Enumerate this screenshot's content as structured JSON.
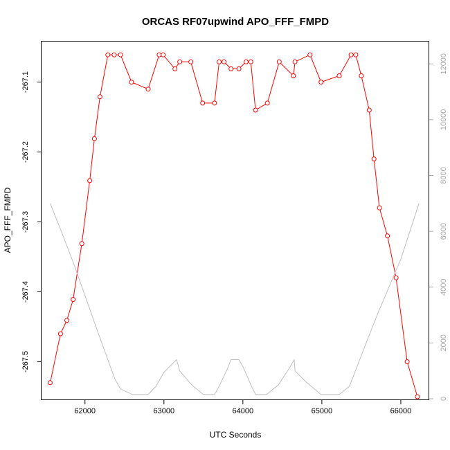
{
  "chart_data": {
    "type": "line",
    "title": "ORCAS RF07upwind APO_FFF_FMPD",
    "xlabel": "UTC Seconds",
    "ylabel": "APO_FFF_FMPD",
    "xlim": [
      61450,
      66360
    ],
    "ylim": [
      -267.555,
      -267.042
    ],
    "y2lim": [
      -50,
      12800
    ],
    "x_ticks": [
      62000,
      63000,
      64000,
      65000,
      66000
    ],
    "y_ticks": [
      -267.5,
      -267.4,
      -267.3,
      -267.2,
      -267.1
    ],
    "y2_ticks": [
      0,
      2000,
      4000,
      6000,
      8000,
      10000,
      12000
    ],
    "colors": {
      "primary": "#ff0000",
      "secondary": "#bebebe"
    },
    "grid": false,
    "series": [
      {
        "axis": "left",
        "style": "line+circle-markers",
        "points": [
          [
            61560,
            -267.53
          ],
          [
            61690,
            -267.46
          ],
          [
            61770,
            -267.441
          ],
          [
            61850,
            -267.411
          ],
          [
            61960,
            -267.331
          ],
          [
            62060,
            -267.241
          ],
          [
            62120,
            -267.181
          ],
          [
            62190,
            -267.121
          ],
          [
            62290,
            -267.061
          ],
          [
            62370,
            -267.061
          ],
          [
            62450,
            -267.061
          ],
          [
            62590,
            -267.1
          ],
          [
            62800,
            -267.11
          ],
          [
            62940,
            -267.061
          ],
          [
            62990,
            -267.061
          ],
          [
            63140,
            -267.081
          ],
          [
            63200,
            -267.071
          ],
          [
            63340,
            -267.071
          ],
          [
            63490,
            -267.13
          ],
          [
            63640,
            -267.13
          ],
          [
            63700,
            -267.071
          ],
          [
            63760,
            -267.071
          ],
          [
            63850,
            -267.081
          ],
          [
            63950,
            -267.081
          ],
          [
            64040,
            -267.071
          ],
          [
            64100,
            -267.071
          ],
          [
            64160,
            -267.14
          ],
          [
            64310,
            -267.13
          ],
          [
            64460,
            -267.071
          ],
          [
            64640,
            -267.091
          ],
          [
            64660,
            -267.071
          ],
          [
            64850,
            -267.061
          ],
          [
            64990,
            -267.1
          ],
          [
            65220,
            -267.091
          ],
          [
            65370,
            -267.061
          ],
          [
            65430,
            -267.061
          ],
          [
            65500,
            -267.091
          ],
          [
            65600,
            -267.14
          ],
          [
            65660,
            -267.21
          ],
          [
            65730,
            -267.28
          ],
          [
            65830,
            -267.32
          ],
          [
            65940,
            -267.38
          ],
          [
            66080,
            -267.5
          ],
          [
            66210,
            -267.55
          ]
        ]
      },
      {
        "axis": "right",
        "style": "line",
        "points": [
          [
            61560,
            7000
          ],
          [
            61700,
            6000
          ],
          [
            61850,
            4900
          ],
          [
            62000,
            3700
          ],
          [
            62200,
            2100
          ],
          [
            62380,
            700
          ],
          [
            62450,
            350
          ],
          [
            62600,
            150
          ],
          [
            62800,
            150
          ],
          [
            62900,
            450
          ],
          [
            63000,
            950
          ],
          [
            63160,
            1400
          ],
          [
            63200,
            1000
          ],
          [
            63350,
            500
          ],
          [
            63500,
            150
          ],
          [
            63640,
            150
          ],
          [
            63700,
            450
          ],
          [
            63800,
            1050
          ],
          [
            63850,
            1400
          ],
          [
            63950,
            1400
          ],
          [
            64010,
            1100
          ],
          [
            64100,
            500
          ],
          [
            64160,
            150
          ],
          [
            64300,
            150
          ],
          [
            64450,
            500
          ],
          [
            64590,
            1100
          ],
          [
            64650,
            1400
          ],
          [
            64660,
            1000
          ],
          [
            64800,
            600
          ],
          [
            64990,
            150
          ],
          [
            65220,
            150
          ],
          [
            65350,
            450
          ],
          [
            65500,
            1550
          ],
          [
            65700,
            3000
          ],
          [
            66000,
            5000
          ],
          [
            66230,
            7000
          ]
        ]
      }
    ]
  }
}
